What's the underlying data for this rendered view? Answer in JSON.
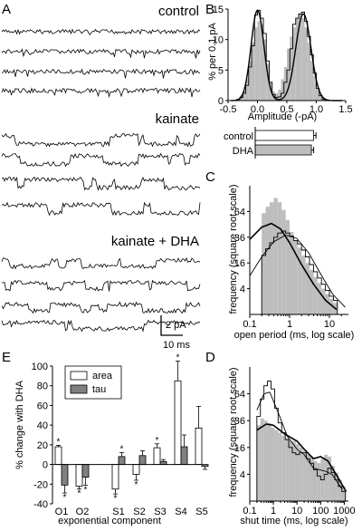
{
  "panels": {
    "A": {
      "letter": "A",
      "conditions": [
        {
          "label": "control",
          "traces": 4
        },
        {
          "label": "kainate",
          "traces": 4
        },
        {
          "label": "kainate + DHA",
          "traces": 4
        }
      ],
      "scale_current": "2 pA",
      "scale_time": "10 ms"
    },
    "B": {
      "letter": "B",
      "bar_labels": [
        "control",
        "DHA"
      ]
    },
    "C": {
      "letter": "C"
    },
    "D": {
      "letter": "D"
    },
    "E": {
      "letter": "E"
    }
  },
  "chart_data": [
    {
      "id": "B",
      "type": "bar",
      "title": "",
      "xlabel": "Amplitude (-pA)",
      "ylabel": "% per 0.1 pA",
      "xlim": [
        -0.5,
        1.5
      ],
      "ylim": [
        0,
        15
      ],
      "x_ticks": [
        "-0.5",
        "0.0",
        "0.5",
        "1.0",
        "1.5"
      ],
      "y_ticks": [
        "0",
        "5",
        "10",
        "15"
      ],
      "bin_width": 0.05,
      "x": [
        -0.35,
        -0.3,
        -0.25,
        -0.2,
        -0.15,
        -0.1,
        -0.05,
        0.0,
        0.05,
        0.1,
        0.15,
        0.2,
        0.25,
        0.3,
        0.35,
        0.4,
        0.45,
        0.5,
        0.55,
        0.6,
        0.65,
        0.7,
        0.75,
        0.8,
        0.85,
        0.9,
        0.95,
        1.0,
        1.05,
        1.1
      ],
      "series": [
        {
          "name": "kainate",
          "style": "gray-bars",
          "values": [
            0.3,
            0.8,
            1.6,
            3.5,
            6.5,
            9.5,
            12.0,
            13.0,
            12.5,
            10.0,
            6.0,
            3.0,
            1.5,
            1.2,
            1.8,
            3.5,
            5.5,
            8.5,
            10.5,
            12.0,
            13.5,
            14.2,
            13.5,
            12.0,
            9.5,
            6.5,
            4.0,
            2.0,
            0.8,
            0.3
          ]
        },
        {
          "name": "kainate + DHA",
          "style": "step",
          "values": [
            0.2,
            0.5,
            1.2,
            2.5,
            5.5,
            9.0,
            14.0,
            14.8,
            13.5,
            11.0,
            6.5,
            3.0,
            1.0,
            0.5,
            0.6,
            1.2,
            3.0,
            5.0,
            8.5,
            12.5,
            13.5,
            14.2,
            14.5,
            13.0,
            10.5,
            7.5,
            4.5,
            2.0,
            0.8,
            0.2
          ]
        }
      ],
      "fit_peaks": [
        {
          "mean": 0.0,
          "sd": 0.11,
          "amplitude": 14.8
        },
        {
          "mean": 0.78,
          "sd": 0.13,
          "amplitude": 14.2
        }
      ],
      "inset": {
        "type": "bar",
        "orientation": "horizontal",
        "categories": [
          "control",
          "DHA"
        ],
        "values": [
          0.76,
          0.73
        ],
        "errors": [
          0.03,
          0.03
        ],
        "colors": [
          "#ffffff",
          "#bdbdbd"
        ],
        "xlim": [
          0,
          0.8
        ]
      }
    },
    {
      "id": "C",
      "type": "bar",
      "title": "",
      "xlabel": "open period (ms, log scale)",
      "ylabel": "frequency (square root scale)",
      "x_scale": "log",
      "y_scale": "sqrt",
      "xlim": [
        0.1,
        30
      ],
      "ylim": [
        0,
        100
      ],
      "x_ticks": [
        "0.1",
        "1",
        "10"
      ],
      "y_ticks": [
        "4",
        "16",
        "36",
        "64"
      ],
      "bin_edges_log10": [
        -0.7,
        -0.6,
        -0.5,
        -0.4,
        -0.3,
        -0.2,
        -0.1,
        0.0,
        0.1,
        0.2,
        0.3,
        0.4,
        0.5,
        0.6,
        0.7,
        0.8,
        0.9,
        1.0,
        1.1,
        1.2
      ],
      "series": [
        {
          "name": "kainate",
          "style": "gray-bars",
          "values": [
            62,
            70,
            76,
            82,
            76,
            66,
            54,
            41,
            33,
            27,
            21,
            16,
            12,
            8.5,
            6,
            4,
            2.5,
            1.5,
            0.8
          ]
        },
        {
          "name": "kainate + DHA",
          "style": "step",
          "values": [
            21,
            26,
            31,
            36,
            40,
            42,
            40,
            37,
            33,
            30,
            25,
            20,
            15,
            11,
            8,
            5.5,
            3.5,
            2,
            1.2
          ]
        }
      ],
      "fits": [
        {
          "name": "kainate",
          "points": [
            [
              0.1,
              34
            ],
            [
              0.2,
              46
            ],
            [
              0.35,
              50
            ],
            [
              0.6,
              44
            ],
            [
              1,
              31
            ],
            [
              2,
              15
            ],
            [
              4,
              5.5
            ],
            [
              8,
              1.2
            ],
            [
              15,
              0.15
            ]
          ]
        },
        {
          "name": "kainate + DHA",
          "points": [
            [
              0.1,
              9
            ],
            [
              0.2,
              20
            ],
            [
              0.4,
              32
            ],
            [
              0.8,
              38
            ],
            [
              1.5,
              35
            ],
            [
              3,
              23
            ],
            [
              6,
              10
            ],
            [
              12,
              2.5
            ],
            [
              25,
              0.3
            ]
          ]
        }
      ]
    },
    {
      "id": "D",
      "type": "bar",
      "title": "",
      "xlabel": "shut time (ms, log scale)",
      "ylabel": "frequency (square root scale)",
      "x_scale": "log",
      "y_scale": "sqrt",
      "xlim": [
        0.1,
        1500
      ],
      "ylim": [
        0,
        100
      ],
      "x_ticks": [
        "0.1",
        "1",
        "10",
        "100",
        "1000"
      ],
      "y_ticks": [
        "4",
        "16",
        "36",
        "64"
      ],
      "bin_edges_log10": [
        -0.7,
        -0.55,
        -0.4,
        -0.25,
        -0.1,
        0.05,
        0.2,
        0.35,
        0.5,
        0.65,
        0.8,
        0.95,
        1.1,
        1.25,
        1.4,
        1.55,
        1.7,
        1.85,
        2.0,
        2.15,
        2.3,
        2.45,
        2.6,
        2.75,
        2.9,
        3.05
      ],
      "series": [
        {
          "name": "kainate",
          "style": "gray-bars",
          "values": [
            32,
            38,
            36,
            34,
            30,
            28,
            26,
            24,
            22,
            20,
            20,
            18,
            16,
            14,
            12,
            11,
            9,
            8,
            10,
            12,
            11,
            7,
            4.5,
            2.5,
            1.2
          ]
        },
        {
          "name": "kainate + DHA",
          "style": "step",
          "values": [
            40,
            58,
            74,
            80,
            70,
            48,
            34,
            26,
            21,
            16,
            13,
            12,
            13,
            13,
            10,
            8,
            5.5,
            3.5,
            2.5,
            4,
            6,
            4.5,
            2.5,
            1.2,
            0.5
          ]
        }
      ],
      "fits": [
        {
          "name": "kainate",
          "points": [
            [
              0.2,
              28
            ],
            [
              0.5,
              33
            ],
            [
              1,
              32
            ],
            [
              3,
              25
            ],
            [
              10,
              20
            ],
            [
              20,
              15
            ],
            [
              50,
              10
            ],
            [
              100,
              11
            ],
            [
              200,
              9
            ],
            [
              500,
              3.5
            ],
            [
              1200,
              0.5
            ]
          ]
        },
        {
          "name": "kainate + DHA",
          "points": [
            [
              0.2,
              46
            ],
            [
              0.4,
              64
            ],
            [
              0.7,
              66
            ],
            [
              1.5,
              45
            ],
            [
              4,
              23
            ],
            [
              10,
              15
            ],
            [
              20,
              12
            ],
            [
              50,
              6
            ],
            [
              150,
              5
            ],
            [
              300,
              4
            ],
            [
              800,
              0.8
            ]
          ]
        }
      ]
    },
    {
      "id": "E",
      "type": "bar",
      "title": "",
      "xlabel": "exponential component",
      "ylabel": "% change with DHA",
      "ylim": [
        -40,
        100
      ],
      "y_ticks": [
        "-40",
        "-20",
        "0",
        "20",
        "40",
        "60",
        "80",
        "100"
      ],
      "categories": [
        "O1",
        "O2",
        "S1",
        "S2",
        "S3",
        "S4",
        "S5"
      ],
      "series": [
        {
          "name": "area",
          "color": "#ffffff",
          "values": [
            18,
            -22,
            -25,
            -10,
            17,
            85,
            37
          ],
          "errors": [
            1.5,
            3,
            5,
            6,
            4,
            20,
            22
          ],
          "significant": [
            true,
            true,
            true,
            true,
            true,
            true,
            false
          ]
        },
        {
          "name": "tau",
          "color": "#808080",
          "values": [
            -21,
            -13,
            8,
            9,
            3,
            18,
            -2
          ],
          "errors": [
            8,
            8,
            4,
            5,
            2,
            12,
            3
          ],
          "significant": [
            true,
            true,
            true,
            false,
            false,
            false,
            false
          ]
        }
      ],
      "legend": {
        "placement": "top-left",
        "entries": [
          "area",
          "tau"
        ]
      }
    }
  ]
}
